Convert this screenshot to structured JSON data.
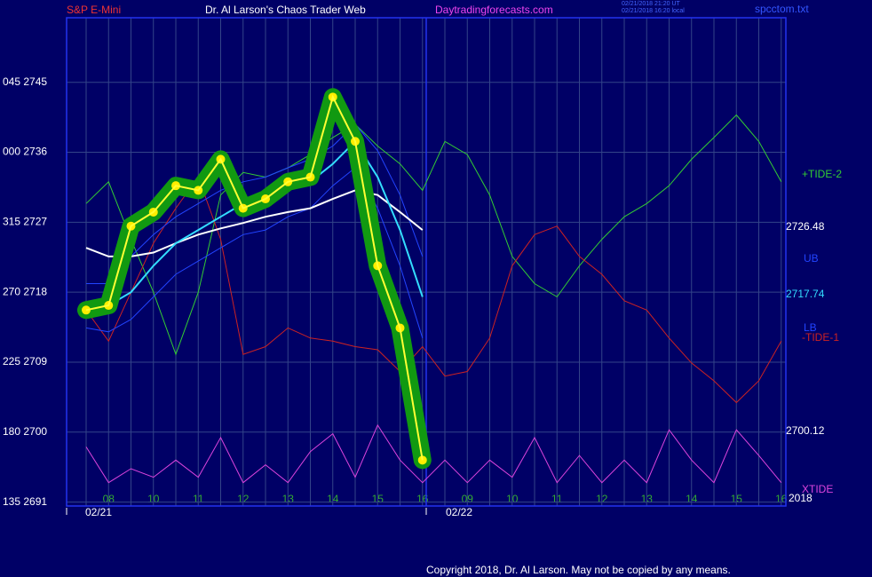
{
  "header": {
    "symbol": "S&P E-Mini",
    "site": "Dr. Al Larson's Chaos Trader Web",
    "url": "Daytradingforecasts.com",
    "stamp_ut": "02/21/2018 21:20 UT",
    "stamp_local": "02/21/2018 16:20 local",
    "file": "spcctom.txt"
  },
  "footer": "Copyright 2018, Dr. Al Larson. May not be copied by any means.",
  "chart_data": {
    "type": "line",
    "categories": [
      null,
      "08",
      null,
      "10",
      null,
      "11",
      null,
      "12",
      null,
      "13",
      null,
      "14",
      null,
      "15",
      null,
      "16",
      null,
      "09",
      null,
      "10",
      null,
      "11",
      null,
      "12",
      null,
      "13",
      null,
      "14",
      null,
      "15",
      null,
      "16"
    ],
    "dates": [
      "02/21",
      "02/22"
    ],
    "year": "2018",
    "ylim": [
      2690.5,
      2753.3
    ],
    "yticks": [
      {
        "value": 2745,
        "label": "045 2745"
      },
      {
        "value": 2736,
        "label": "000 2736"
      },
      {
        "value": 2727,
        "label": "315 2727"
      },
      {
        "value": 2718,
        "label": "270 2718"
      },
      {
        "value": 2709,
        "label": "225 2709"
      },
      {
        "value": 2700,
        "label": "180 2700"
      },
      {
        "value": 2691,
        "label": "135 2691"
      }
    ],
    "grid": true,
    "series": [
      {
        "name": "+TIDE-2",
        "color": "#33cc33",
        "values": [
          2729.4,
          2732.2,
          2724.8,
          2718,
          2710,
          2718,
          2730.5,
          2733.4,
          2732.8,
          2734,
          2735.7,
          2737.9,
          2739.6,
          2736.8,
          2734.5,
          2731.1,
          2737.4,
          2735.7,
          2730.5,
          2722.6,
          2719.1,
          2717.4,
          2721.4,
          2724.8,
          2727.7,
          2729.4,
          2731.7,
          2735.1,
          2737.9,
          2740.8,
          2737.4,
          2732.2
        ]
      },
      {
        "name": "-TIDE-1",
        "color": "#cc2222",
        "values": [
          2715.7,
          2711.7,
          2718,
          2724.3,
          2728.8,
          2732.8,
          2724.8,
          2710,
          2711,
          2713.4,
          2712.1,
          2711.7,
          2711,
          2710.6,
          2707.8,
          2711,
          2707.2,
          2707.8,
          2712.1,
          2721.4,
          2725.4,
          2726.5,
          2722.6,
          2720.3,
          2716.9,
          2715.7,
          2712.1,
          2708.9,
          2706.6,
          2703.8,
          2706.6,
          2711.7
        ]
      },
      {
        "name": "XTIDE",
        "color": "#dd44dd",
        "values": [
          2698.1,
          2693.5,
          2695.3,
          2694.2,
          2696.4,
          2694.2,
          2699.3,
          2693.5,
          2695.8,
          2693.5,
          2697.5,
          2699.8,
          2694.2,
          2700.9,
          2696.4,
          2693.5,
          2696.4,
          2693.5,
          2696.4,
          2694.2,
          2699.3,
          2693.5,
          2697,
          2693.5,
          2696.4,
          2693.5,
          2700.3,
          2696.4,
          2693.5,
          2700.3,
          2697,
          2693.5
        ]
      },
      {
        "name": "UB",
        "color": "#2244ff",
        "values": [
          2719.1,
          2719.1,
          2722.6,
          2725.4,
          2727.7,
          2729.4,
          2731.1,
          2732.2,
          2732.8,
          2734,
          2735.1,
          2736.8,
          2739.6,
          2736.2,
          2730.5,
          2722.6,
          null,
          null,
          null,
          null,
          null,
          null,
          null,
          null,
          null,
          null,
          null,
          null,
          null,
          null,
          null,
          null
        ]
      },
      {
        "name": "LB",
        "color": "#2244ff",
        "values": [
          2713.4,
          2712.9,
          2714.5,
          2717.4,
          2720.3,
          2722,
          2723.7,
          2725.4,
          2726,
          2727.7,
          2728.8,
          2731.7,
          2734,
          2728.8,
          2721.4,
          2712.1,
          null,
          null,
          null,
          null,
          null,
          null,
          null,
          null,
          null,
          null,
          null,
          null,
          null,
          null,
          null,
          null
        ]
      },
      {
        "color": "#ffffff",
        "last": 2726.48,
        "values": [
          2723.7,
          2722.6,
          2722.6,
          2723.1,
          2724.3,
          2725.4,
          2726.2,
          2726.9,
          2727.7,
          2728.3,
          2728.8,
          2730,
          2731.1,
          2730.5,
          2728.3,
          2726,
          null,
          null,
          null,
          null,
          null,
          null,
          null,
          null,
          null,
          null,
          null,
          null,
          null,
          null,
          null,
          null
        ]
      },
      {
        "color": "#33ddff",
        "last": 2717.74,
        "values": [
          2716.3,
          2716.3,
          2718,
          2721.4,
          2724.3,
          2726,
          2727.7,
          2729.4,
          2730,
          2731.1,
          2732.2,
          2734.5,
          2737.4,
          2732.8,
          2726,
          2717.4,
          null,
          null,
          null,
          null,
          null,
          null,
          null,
          null,
          null,
          null,
          null,
          null,
          null,
          null,
          null,
          null
        ]
      },
      {
        "color": "#ffff33",
        "band_color": "#119911",
        "last": 2700.12,
        "values": [
          2715.7,
          2716.3,
          2726.5,
          2728.3,
          2731.7,
          2731.1,
          2735.1,
          2728.8,
          2730,
          2732.2,
          2732.8,
          2743.1,
          2737.4,
          2721.4,
          2713.4,
          2696.4,
          null,
          null,
          null,
          null,
          null,
          null,
          null,
          null,
          null,
          null,
          null,
          null,
          null,
          null,
          null,
          null
        ]
      }
    ]
  }
}
